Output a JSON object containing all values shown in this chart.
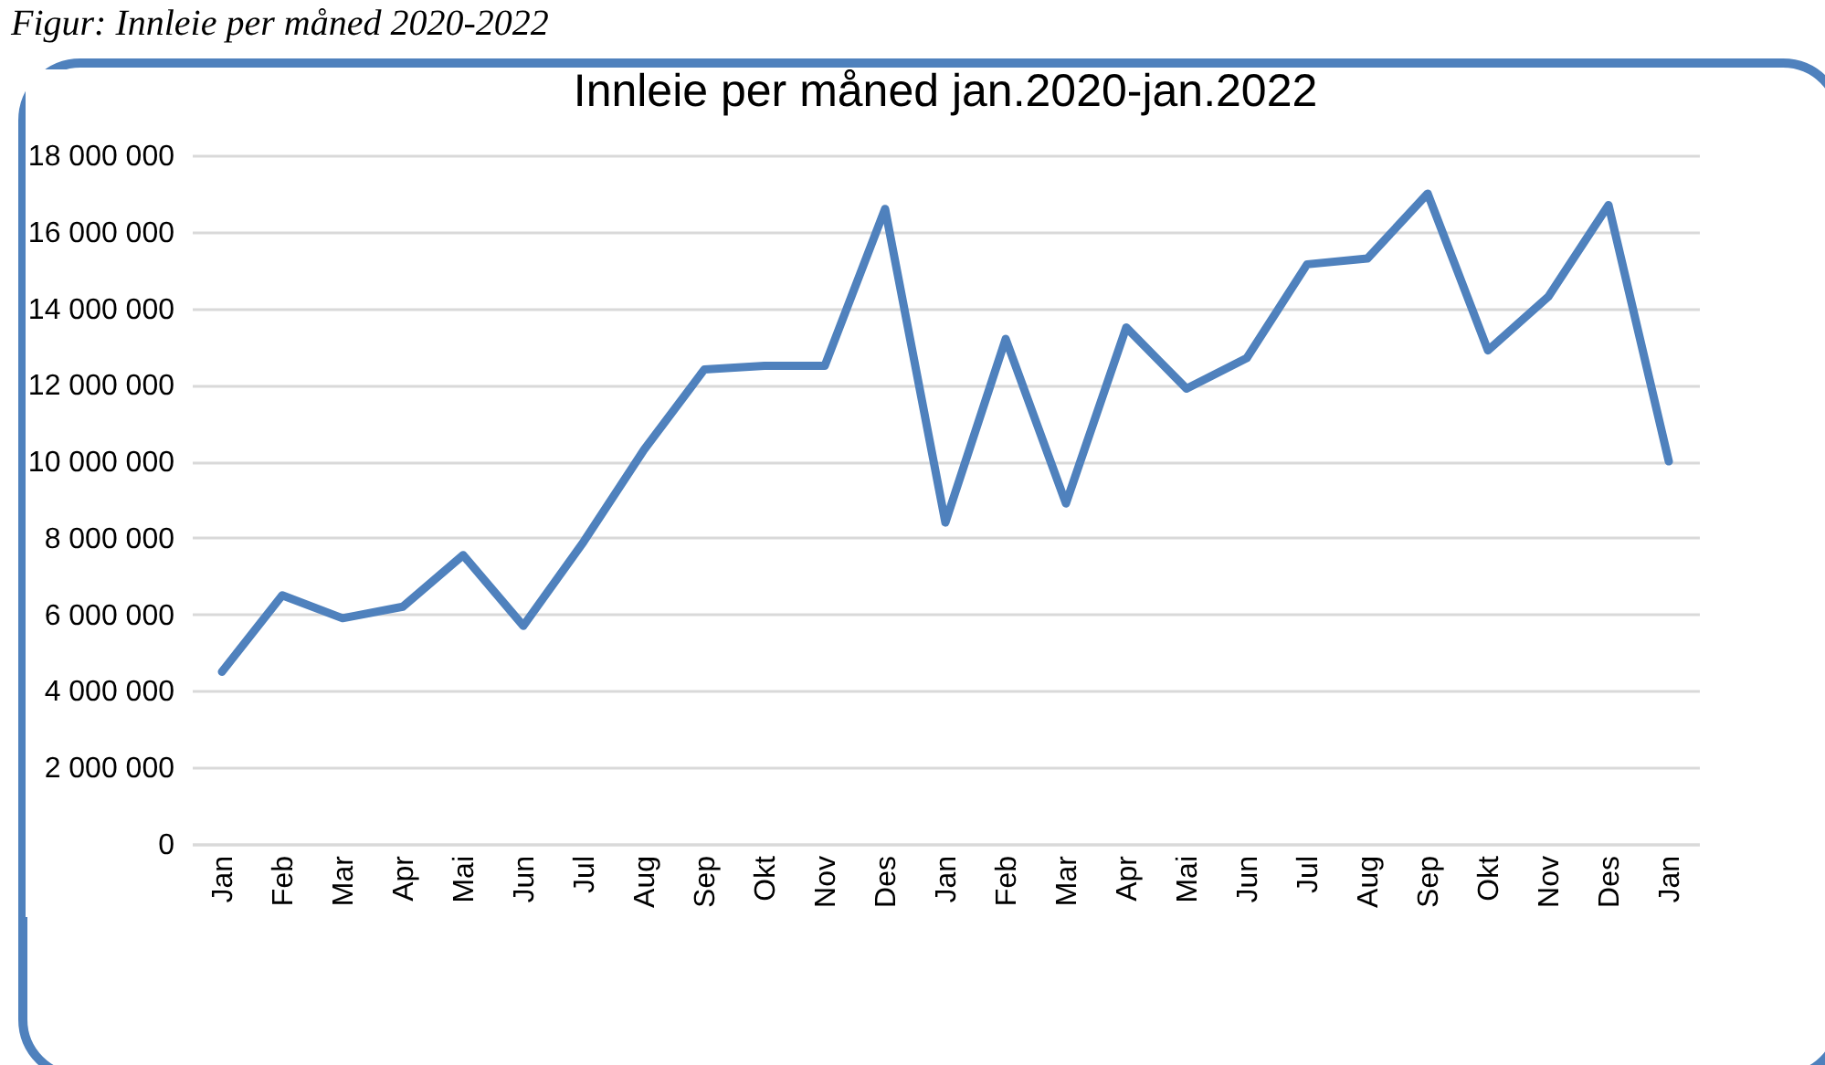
{
  "chart_data": {
    "type": "line",
    "title": "Innleie per måned jan.2020-jan.2022",
    "annotations": [
      "Figur: Innleie per måned 2020-2022"
    ],
    "categories": [
      "Jan",
      "Feb",
      "Mar",
      "Apr",
      "Mai",
      "Jun",
      "Jul",
      "Aug",
      "Sep",
      "Okt",
      "Nov",
      "Des",
      "Jan",
      "Feb",
      "Mar",
      "Apr",
      "Mai",
      "Jun",
      "Jul",
      "Aug",
      "Sep",
      "Okt",
      "Nov",
      "Des",
      "Jan"
    ],
    "series": [
      {
        "color": "#4f81bd",
        "values": [
          4500000,
          6500000,
          5900000,
          6200000,
          7550000,
          5700000,
          7900000,
          10300000,
          12400000,
          12500000,
          12500000,
          16600000,
          8400000,
          13200000,
          8900000,
          13500000,
          11900000,
          12700000,
          15150000,
          15300000,
          17000000,
          12900000,
          14300000,
          16700000,
          10000000
        ]
      }
    ],
    "ylim": [
      0,
      18000000
    ],
    "yticks": [
      0,
      2000000,
      4000000,
      6000000,
      8000000,
      10000000,
      12000000,
      14000000,
      16000000,
      18000000
    ],
    "grid": "y",
    "legend": false,
    "marker": "none",
    "line_style": "solid"
  }
}
